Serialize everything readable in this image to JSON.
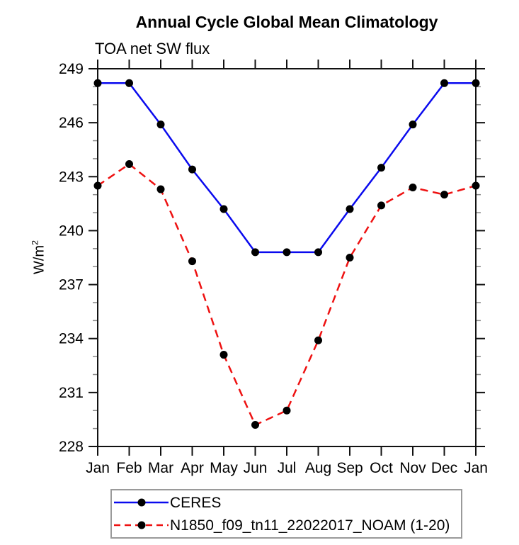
{
  "chart_data": {
    "type": "line",
    "title": "Annual Cycle Global Mean Climatology",
    "subtitle": "TOA net SW flux",
    "ylabel": "W/m2",
    "ylabel_parts": {
      "base": "W/m",
      "sup": "2"
    },
    "x_categories": [
      "Jan",
      "Feb",
      "Mar",
      "Apr",
      "May",
      "Jun",
      "Jul",
      "Aug",
      "Sep",
      "Oct",
      "Nov",
      "Dec",
      "Jan"
    ],
    "series": [
      {
        "name": "CERES",
        "color": "#0a0aee",
        "line_style": "solid",
        "marker": "filled-circle",
        "marker_color": "#000000",
        "values": [
          248.2,
          248.2,
          245.9,
          243.4,
          241.2,
          238.8,
          238.8,
          238.8,
          241.2,
          243.5,
          245.9,
          248.2,
          248.2
        ]
      },
      {
        "name": "N1850_f09_tn11_22022017_NOAM (1-20)",
        "color": "#ee1111",
        "line_style": "dashed",
        "marker": "filled-circle",
        "marker_color": "#000000",
        "values": [
          242.5,
          243.7,
          242.3,
          238.3,
          233.1,
          229.2,
          230.0,
          233.9,
          238.5,
          241.4,
          242.4,
          242.0,
          242.5
        ]
      }
    ],
    "ylim": [
      228,
      249
    ],
    "yticks_major": [
      228,
      231,
      234,
      237,
      240,
      243,
      246,
      249
    ],
    "ytick_minor_step": 1,
    "grid": false,
    "axis_color": "#111111",
    "minor_tick_color": "#888888",
    "legend_position": "bottom-center-box"
  }
}
